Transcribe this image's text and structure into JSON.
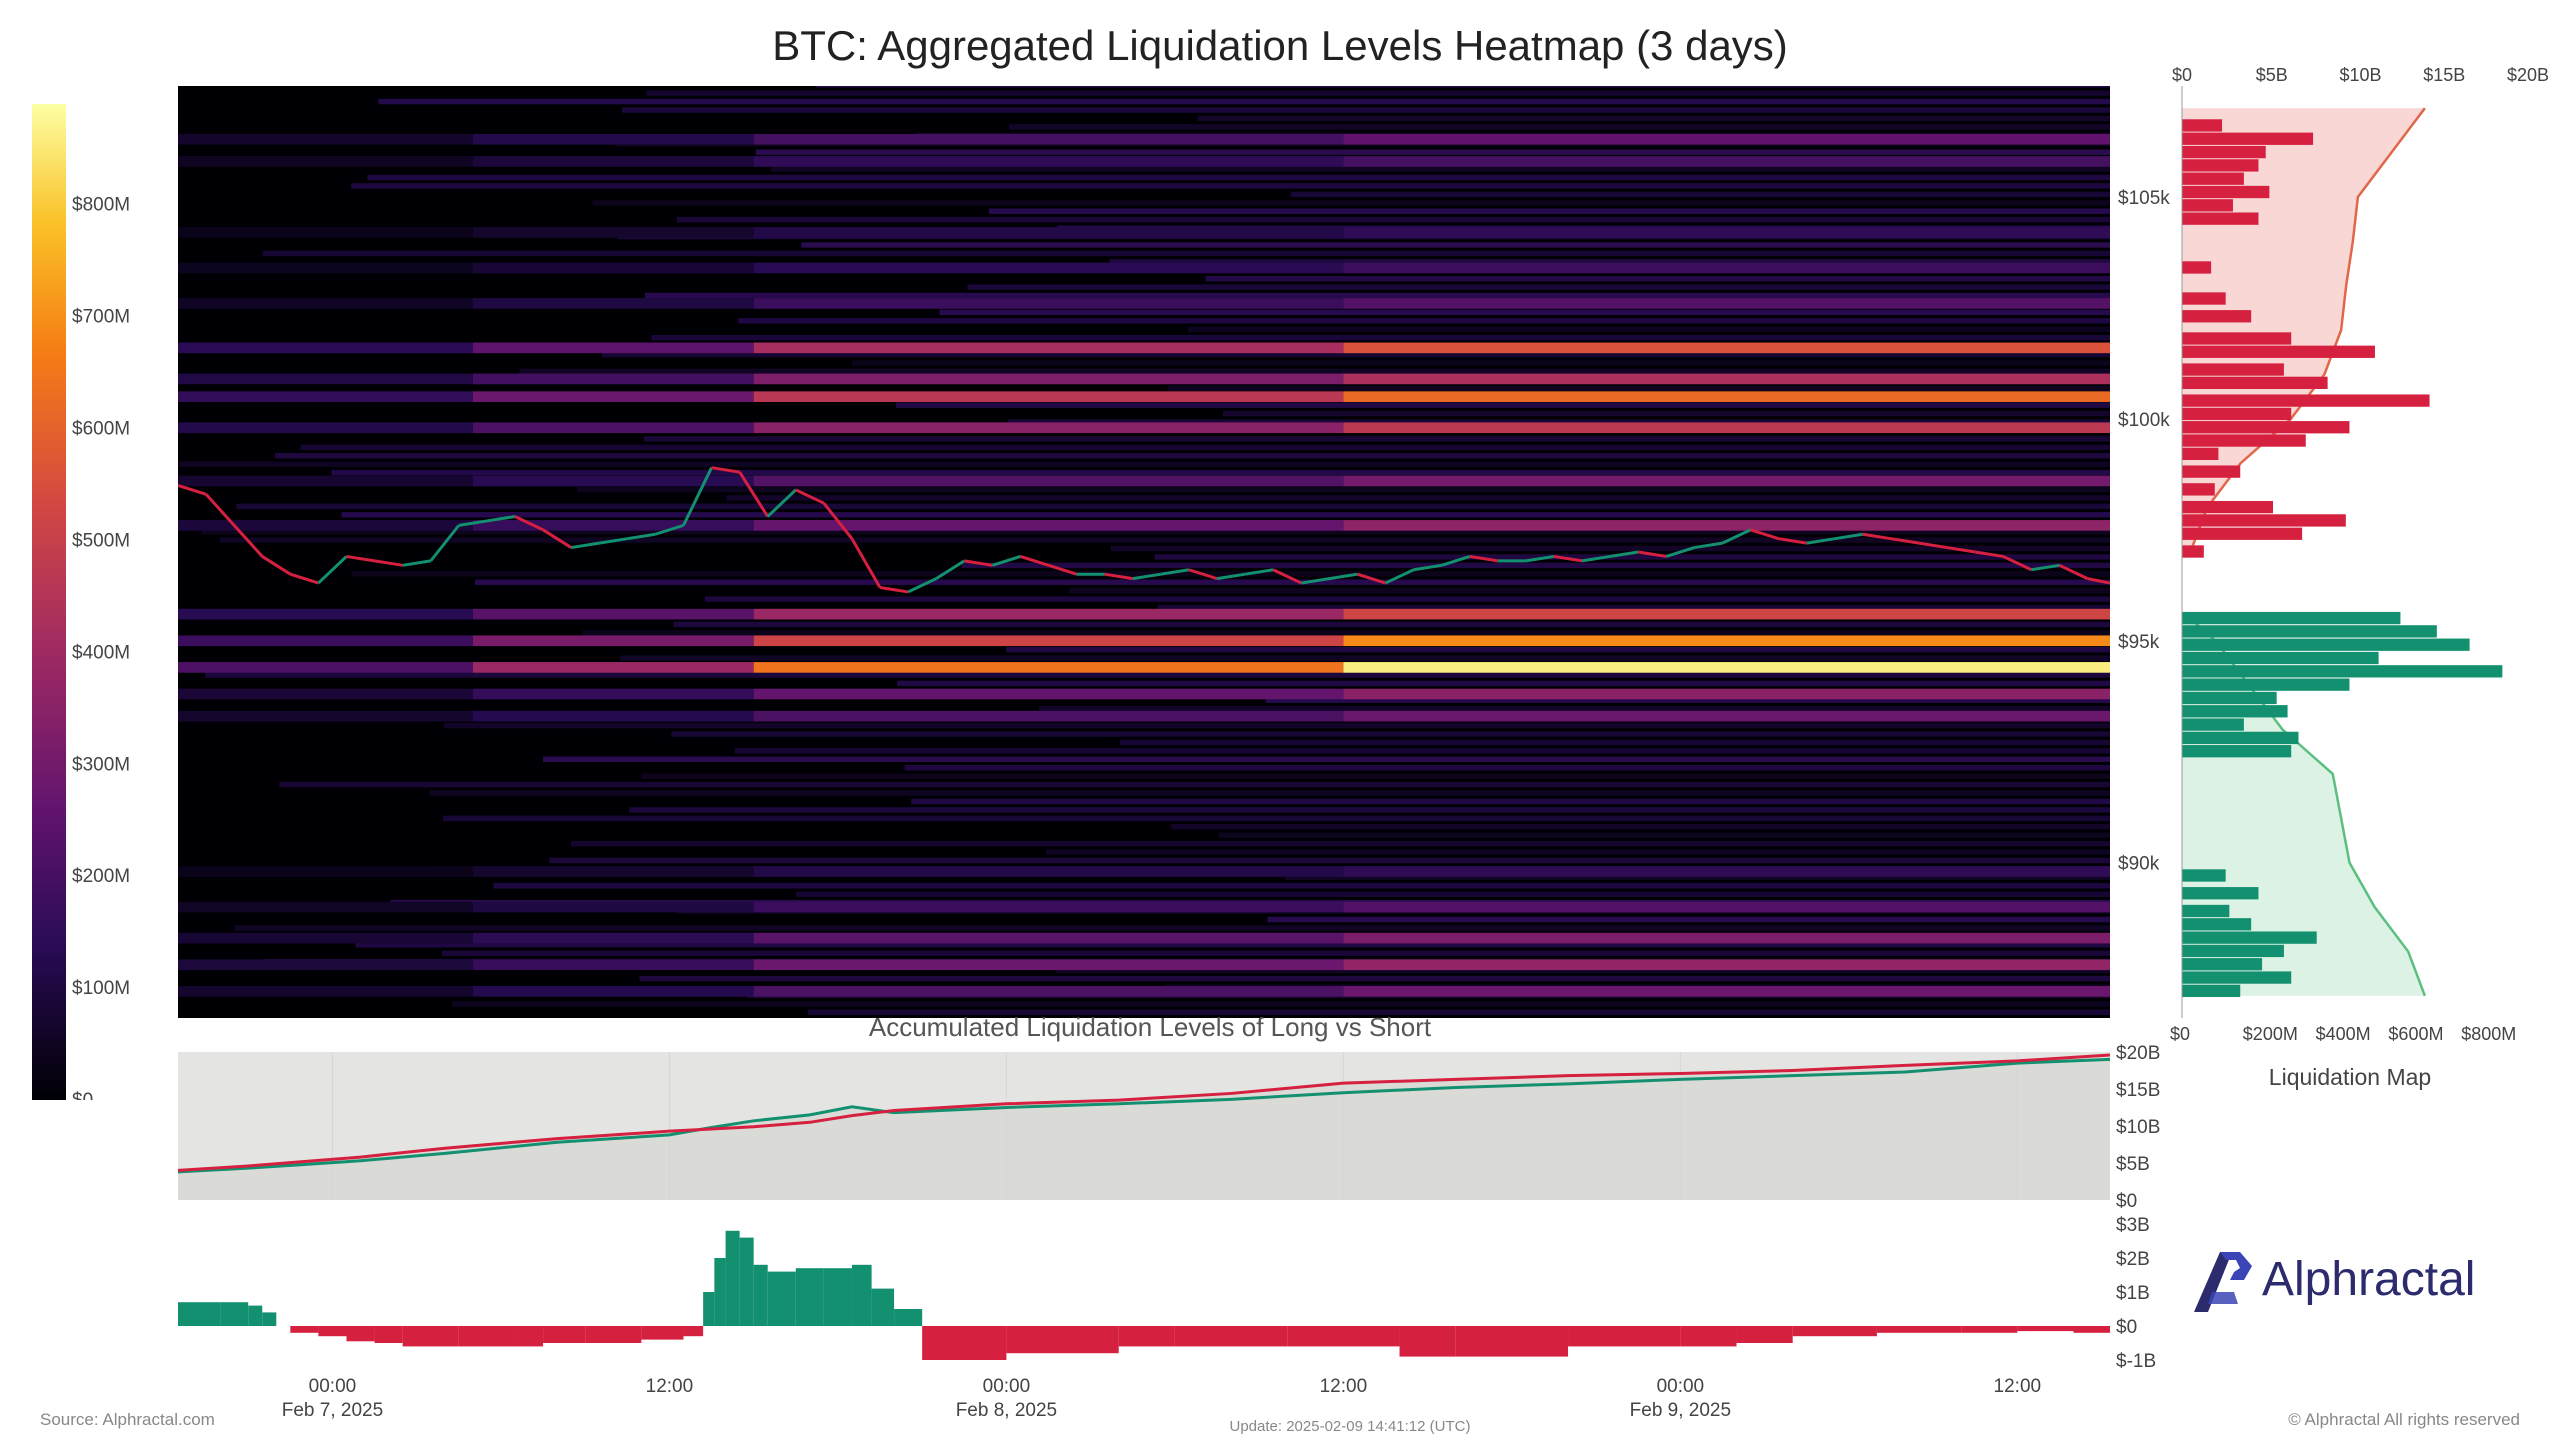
{
  "title": "BTC: Aggregated Liquidation Levels Heatmap (3 days)",
  "source": "Source: Alphractal.com",
  "update": "Update: 2025-02-09 14:41:12 (UTC)",
  "copyright": "© Alphractal All rights reserved",
  "logo_text": "Alphractal",
  "colors": {
    "long_green": "#13906f",
    "short_red": "#d6203f",
    "heat_low": "#000004",
    "heat_mid": "#7b2382",
    "heat_high": "#fcffa4"
  },
  "chart_data": [
    {
      "type": "heatmap",
      "title": "BTC: Aggregated Liquidation Levels Heatmap (3 days)",
      "y_ticks": [
        "$90k",
        "$95k",
        "$100k",
        "$105k"
      ],
      "y_tick_values": [
        90000,
        95000,
        100000,
        105000
      ],
      "ylim": [
        86500,
        107500
      ],
      "x_ticks": [
        {
          "time": "00:00",
          "date": "Feb 7, 2025"
        },
        {
          "time": "12:00",
          "date": ""
        },
        {
          "time": "00:00",
          "date": "Feb 8, 2025"
        },
        {
          "time": "12:00",
          "date": ""
        },
        {
          "time": "00:00",
          "date": "Feb 9, 2025"
        },
        {
          "time": "12:00",
          "date": ""
        }
      ],
      "x_tick_hours": [
        0,
        12,
        24,
        36,
        48,
        60
      ],
      "xlim_hours": [
        -5.5,
        63.3
      ],
      "colorbar_ticks": [
        "$0",
        "$100M",
        "$200M",
        "$300M",
        "$400M",
        "$500M",
        "$600M",
        "$700M",
        "$800M"
      ],
      "colorbar_values": [
        0,
        100,
        200,
        300,
        400,
        500,
        600,
        700,
        800
      ],
      "colorbar_max": 890,
      "bands": [
        {
          "price": 106300,
          "value": 260
        },
        {
          "price": 105800,
          "value": 200
        },
        {
          "price": 104200,
          "value": 150
        },
        {
          "price": 103400,
          "value": 180
        },
        {
          "price": 102600,
          "value": 230
        },
        {
          "price": 101600,
          "value": 560
        },
        {
          "price": 100900,
          "value": 430
        },
        {
          "price": 100500,
          "value": 620
        },
        {
          "price": 99800,
          "value": 470
        },
        {
          "price": 98600,
          "value": 300
        },
        {
          "price": 97600,
          "value": 360
        },
        {
          "price": 95600,
          "value": 520
        },
        {
          "price": 95000,
          "value": 690
        },
        {
          "price": 94400,
          "value": 860
        },
        {
          "price": 93800,
          "value": 350
        },
        {
          "price": 93300,
          "value": 280
        },
        {
          "price": 89800,
          "value": 150
        },
        {
          "price": 89000,
          "value": 230
        },
        {
          "price": 88300,
          "value": 320
        },
        {
          "price": 87700,
          "value": 370
        },
        {
          "price": 87100,
          "value": 280
        }
      ],
      "price_series": {
        "hours": [
          -5.5,
          -4.5,
          -3.5,
          -2.5,
          -1.5,
          -0.5,
          0.5,
          1.5,
          2.5,
          3.5,
          4.5,
          5.5,
          6.5,
          7.5,
          8.5,
          9.5,
          10.5,
          11.5,
          12.5,
          13.5,
          14.5,
          15.5,
          16.5,
          17.5,
          18.5,
          19.5,
          20.5,
          21.5,
          22.5,
          23.5,
          24.5,
          25.5,
          26.5,
          27.5,
          28.5,
          29.5,
          30.5,
          31.5,
          32.5,
          33.5,
          34.5,
          35.5,
          36.5,
          37.5,
          38.5,
          39.5,
          40.5,
          41.5,
          42.5,
          43.5,
          44.5,
          45.5,
          46.5,
          47.5,
          48.5,
          49.5,
          50.5,
          51.5,
          52.5,
          53.5,
          54.5,
          55.5,
          56.5,
          57.5,
          58.5,
          59.5,
          60.5,
          61.5,
          62.5,
          63.3
        ],
        "prices": [
          98500,
          98300,
          97600,
          96900,
          96500,
          96300,
          96900,
          96800,
          96700,
          96800,
          97600,
          97700,
          97800,
          97500,
          97100,
          97200,
          97300,
          97400,
          97600,
          98900,
          98800,
          97800,
          98400,
          98100,
          97300,
          96200,
          96100,
          96400,
          96800,
          96700,
          96900,
          96700,
          96500,
          96500,
          96400,
          96500,
          96600,
          96400,
          96500,
          96600,
          96300,
          96400,
          96500,
          96300,
          96600,
          96700,
          96900,
          96800,
          96800,
          96900,
          96800,
          96900,
          97000,
          96900,
          97100,
          97200,
          97500,
          97300,
          97200,
          97300,
          97400,
          97300,
          97200,
          97100,
          97000,
          96900,
          96600,
          96700,
          96400,
          96300
        ]
      }
    },
    {
      "type": "bar",
      "title": "Liquidation Map",
      "orientation": "horizontal",
      "top_axis_ticks": [
        "$0",
        "$5B",
        "$10B",
        "$15B",
        "$20B"
      ],
      "top_axis_values": [
        0,
        5,
        10,
        15,
        20
      ],
      "bottom_axis_ticks": [
        "$0",
        "$200M",
        "$400M",
        "$600M",
        "$800M"
      ],
      "bottom_axis_values": [
        0,
        200,
        400,
        600,
        800
      ],
      "bottom_xlim": [
        0,
        890
      ],
      "ylim": [
        86500,
        107500
      ],
      "bars": [
        {
          "price": 106600,
          "value": 110,
          "side": "short"
        },
        {
          "price": 106300,
          "value": 360,
          "side": "short"
        },
        {
          "price": 106000,
          "value": 230,
          "side": "short"
        },
        {
          "price": 105700,
          "value": 210,
          "side": "short"
        },
        {
          "price": 105400,
          "value": 170,
          "side": "short"
        },
        {
          "price": 105100,
          "value": 240,
          "side": "short"
        },
        {
          "price": 104800,
          "value": 140,
          "side": "short"
        },
        {
          "price": 104500,
          "value": 210,
          "side": "short"
        },
        {
          "price": 103400,
          "value": 80,
          "side": "short"
        },
        {
          "price": 102700,
          "value": 120,
          "side": "short"
        },
        {
          "price": 102300,
          "value": 190,
          "side": "short"
        },
        {
          "price": 101800,
          "value": 300,
          "side": "short"
        },
        {
          "price": 101500,
          "value": 530,
          "side": "short"
        },
        {
          "price": 101100,
          "value": 280,
          "side": "short"
        },
        {
          "price": 100800,
          "value": 400,
          "side": "short"
        },
        {
          "price": 100400,
          "value": 680,
          "side": "short"
        },
        {
          "price": 100100,
          "value": 300,
          "side": "short"
        },
        {
          "price": 99800,
          "value": 460,
          "side": "short"
        },
        {
          "price": 99500,
          "value": 340,
          "side": "short"
        },
        {
          "price": 99200,
          "value": 100,
          "side": "short"
        },
        {
          "price": 98800,
          "value": 160,
          "side": "short"
        },
        {
          "price": 98400,
          "value": 90,
          "side": "short"
        },
        {
          "price": 98000,
          "value": 250,
          "side": "short"
        },
        {
          "price": 97700,
          "value": 450,
          "side": "short"
        },
        {
          "price": 97400,
          "value": 330,
          "side": "short"
        },
        {
          "price": 97000,
          "value": 60,
          "side": "short"
        },
        {
          "price": 95500,
          "value": 600,
          "side": "long"
        },
        {
          "price": 95200,
          "value": 700,
          "side": "long"
        },
        {
          "price": 94900,
          "value": 790,
          "side": "long"
        },
        {
          "price": 94600,
          "value": 540,
          "side": "long"
        },
        {
          "price": 94300,
          "value": 880,
          "side": "long"
        },
        {
          "price": 94000,
          "value": 460,
          "side": "long"
        },
        {
          "price": 93700,
          "value": 260,
          "side": "long"
        },
        {
          "price": 93400,
          "value": 290,
          "side": "long"
        },
        {
          "price": 93100,
          "value": 170,
          "side": "long"
        },
        {
          "price": 92800,
          "value": 320,
          "side": "long"
        },
        {
          "price": 92500,
          "value": 300,
          "side": "long"
        },
        {
          "price": 89700,
          "value": 120,
          "side": "long"
        },
        {
          "price": 89300,
          "value": 210,
          "side": "long"
        },
        {
          "price": 88900,
          "value": 130,
          "side": "long"
        },
        {
          "price": 88600,
          "value": 190,
          "side": "long"
        },
        {
          "price": 88300,
          "value": 370,
          "side": "long"
        },
        {
          "price": 88000,
          "value": 280,
          "side": "long"
        },
        {
          "price": 87700,
          "value": 220,
          "side": "long"
        },
        {
          "price": 87400,
          "value": 300,
          "side": "long"
        },
        {
          "price": 87100,
          "value": 160,
          "side": "long"
        }
      ],
      "cumulative_short": {
        "prices": [
          97000,
          98000,
          99000,
          100000,
          101000,
          102000,
          103000,
          104000,
          105000,
          106000,
          107000
        ],
        "values_B": [
          0.5,
          1.5,
          3.5,
          6.5,
          8.5,
          9.5,
          9.8,
          10.2,
          10.5,
          12.5,
          14.5
        ]
      },
      "cumulative_long": {
        "prices": [
          95500,
          95000,
          94000,
          93000,
          92000,
          91000,
          90000,
          89000,
          88000,
          87000
        ],
        "values_B": [
          0.5,
          2.0,
          4.0,
          6.0,
          9.0,
          9.5,
          10.0,
          11.5,
          13.5,
          14.5
        ]
      }
    },
    {
      "type": "line",
      "title": "Accumulated Liquidation Levels of Long vs Short",
      "y_ticks": [
        "$0",
        "$5B",
        "$10B",
        "$15B",
        "$20B"
      ],
      "y_tick_values": [
        0,
        5,
        10,
        15,
        20
      ],
      "ylim": [
        0,
        20
      ],
      "xlim_hours": [
        -5.5,
        63.3
      ],
      "series": [
        {
          "side": "long",
          "color": "#13906f",
          "x": [
            -5.5,
            -3,
            -1,
            1,
            4,
            8,
            12,
            13.5,
            15,
            17,
            18.5,
            20,
            24,
            28,
            32,
            36,
            40,
            44,
            48,
            52,
            56,
            60,
            63.3
          ],
          "y": [
            3.8,
            4.3,
            4.8,
            5.3,
            6.3,
            7.8,
            8.8,
            9.8,
            10.7,
            11.5,
            12.6,
            11.8,
            12.5,
            13.0,
            13.6,
            14.5,
            15.2,
            15.7,
            16.3,
            16.8,
            17.3,
            18.5,
            19.0
          ]
        },
        {
          "side": "short",
          "color": "#d6203f",
          "x": [
            -5.5,
            -3,
            -1,
            1,
            4,
            8,
            12,
            13.5,
            15,
            17,
            18.5,
            20,
            24,
            28,
            32,
            36,
            40,
            44,
            48,
            52,
            56,
            60,
            63.3
          ],
          "y": [
            4.0,
            4.6,
            5.2,
            5.8,
            7.0,
            8.3,
            9.3,
            9.6,
            9.9,
            10.5,
            11.4,
            12.1,
            13.0,
            13.5,
            14.4,
            15.8,
            16.3,
            16.8,
            17.1,
            17.5,
            18.2,
            18.8,
            19.6
          ]
        }
      ]
    },
    {
      "type": "area",
      "title": "",
      "y_ticks": [
        "$3B",
        "$2B",
        "$1B",
        "$0",
        "$-1B"
      ],
      "y_tick_values": [
        3,
        2,
        1,
        0,
        -1
      ],
      "ylim": [
        -1,
        3
      ],
      "xlim_hours": [
        -5.5,
        63.3
      ],
      "x": [
        -5.5,
        -4,
        -3,
        -2.5,
        -2,
        -1.5,
        -0.5,
        0.5,
        1.5,
        2.5,
        4.5,
        6.5,
        7.5,
        9,
        11,
        12.5,
        13.2,
        13.6,
        14,
        14.5,
        15,
        15.5,
        16.5,
        17.5,
        18.5,
        19.2,
        20,
        21,
        24,
        28,
        30,
        34,
        38,
        40,
        44,
        48,
        50,
        52,
        55,
        58,
        60,
        62,
        63.3
      ],
      "values": [
        0.7,
        0.7,
        0.6,
        0.4,
        0,
        -0.2,
        -0.3,
        -0.45,
        -0.5,
        -0.6,
        -0.6,
        -0.6,
        -0.5,
        -0.5,
        -0.4,
        -0.3,
        1.0,
        2.0,
        2.8,
        2.6,
        1.8,
        1.6,
        1.7,
        1.7,
        1.8,
        1.1,
        0.5,
        -1.0,
        -0.8,
        -0.6,
        -0.6,
        -0.6,
        -0.9,
        -0.9,
        -0.6,
        -0.6,
        -0.5,
        -0.3,
        -0.2,
        -0.2,
        -0.15,
        -0.2,
        -0.5
      ]
    }
  ],
  "accumulated_title": "Accumulated Liquidation Levels of Long vs Short",
  "liq_map_title": "Liquidation Map"
}
